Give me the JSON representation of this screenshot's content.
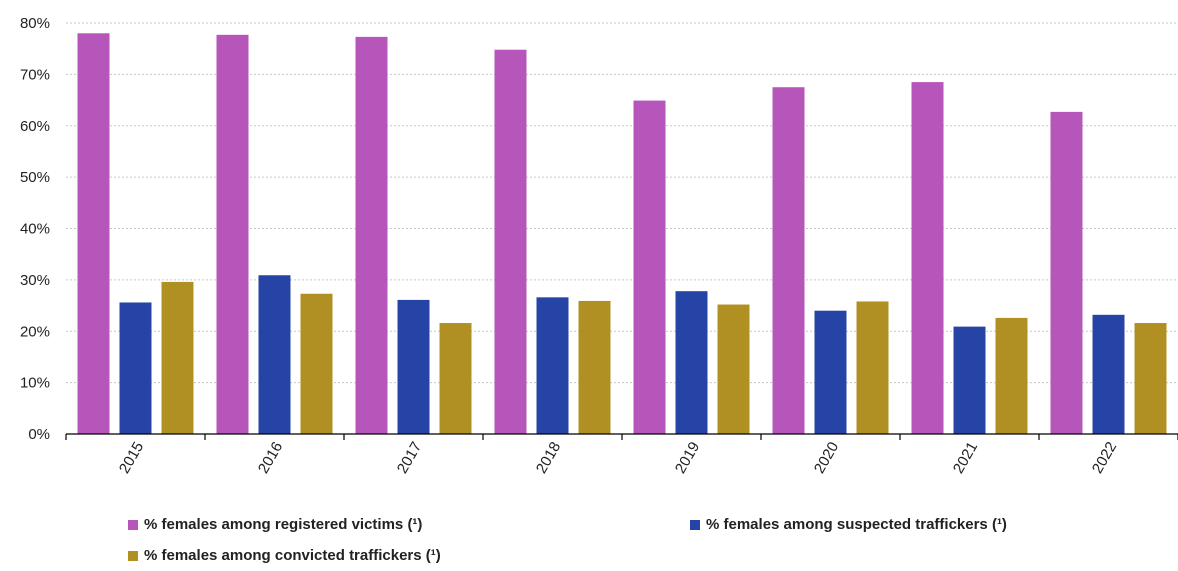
{
  "chart_data": {
    "type": "bar",
    "categories": [
      "2015",
      "2016",
      "2017",
      "2018",
      "2019",
      "2020",
      "2021",
      "2022"
    ],
    "series": [
      {
        "name": "% females among registered victims (¹)",
        "color": "#b656bb",
        "values": [
          78,
          77.7,
          77.3,
          74.8,
          64.9,
          67.5,
          68.5,
          62.7
        ]
      },
      {
        "name": "% females among suspected traffickers (¹)",
        "color": "#2644a6",
        "values": [
          25.6,
          30.9,
          26.1,
          26.6,
          27.8,
          24.0,
          20.9,
          23.2
        ]
      },
      {
        "name": "% females among convicted traffickers (¹)",
        "color": "#b09023",
        "values": [
          29.6,
          27.3,
          21.6,
          25.9,
          25.2,
          25.8,
          22.6,
          21.6
        ]
      }
    ],
    "ylim": [
      0,
      80
    ],
    "yticks": [
      "0%",
      "10%",
      "20%",
      "30%",
      "40%",
      "50%",
      "60%",
      "70%",
      "80%"
    ],
    "grid": true,
    "legend_position": "bottom"
  }
}
